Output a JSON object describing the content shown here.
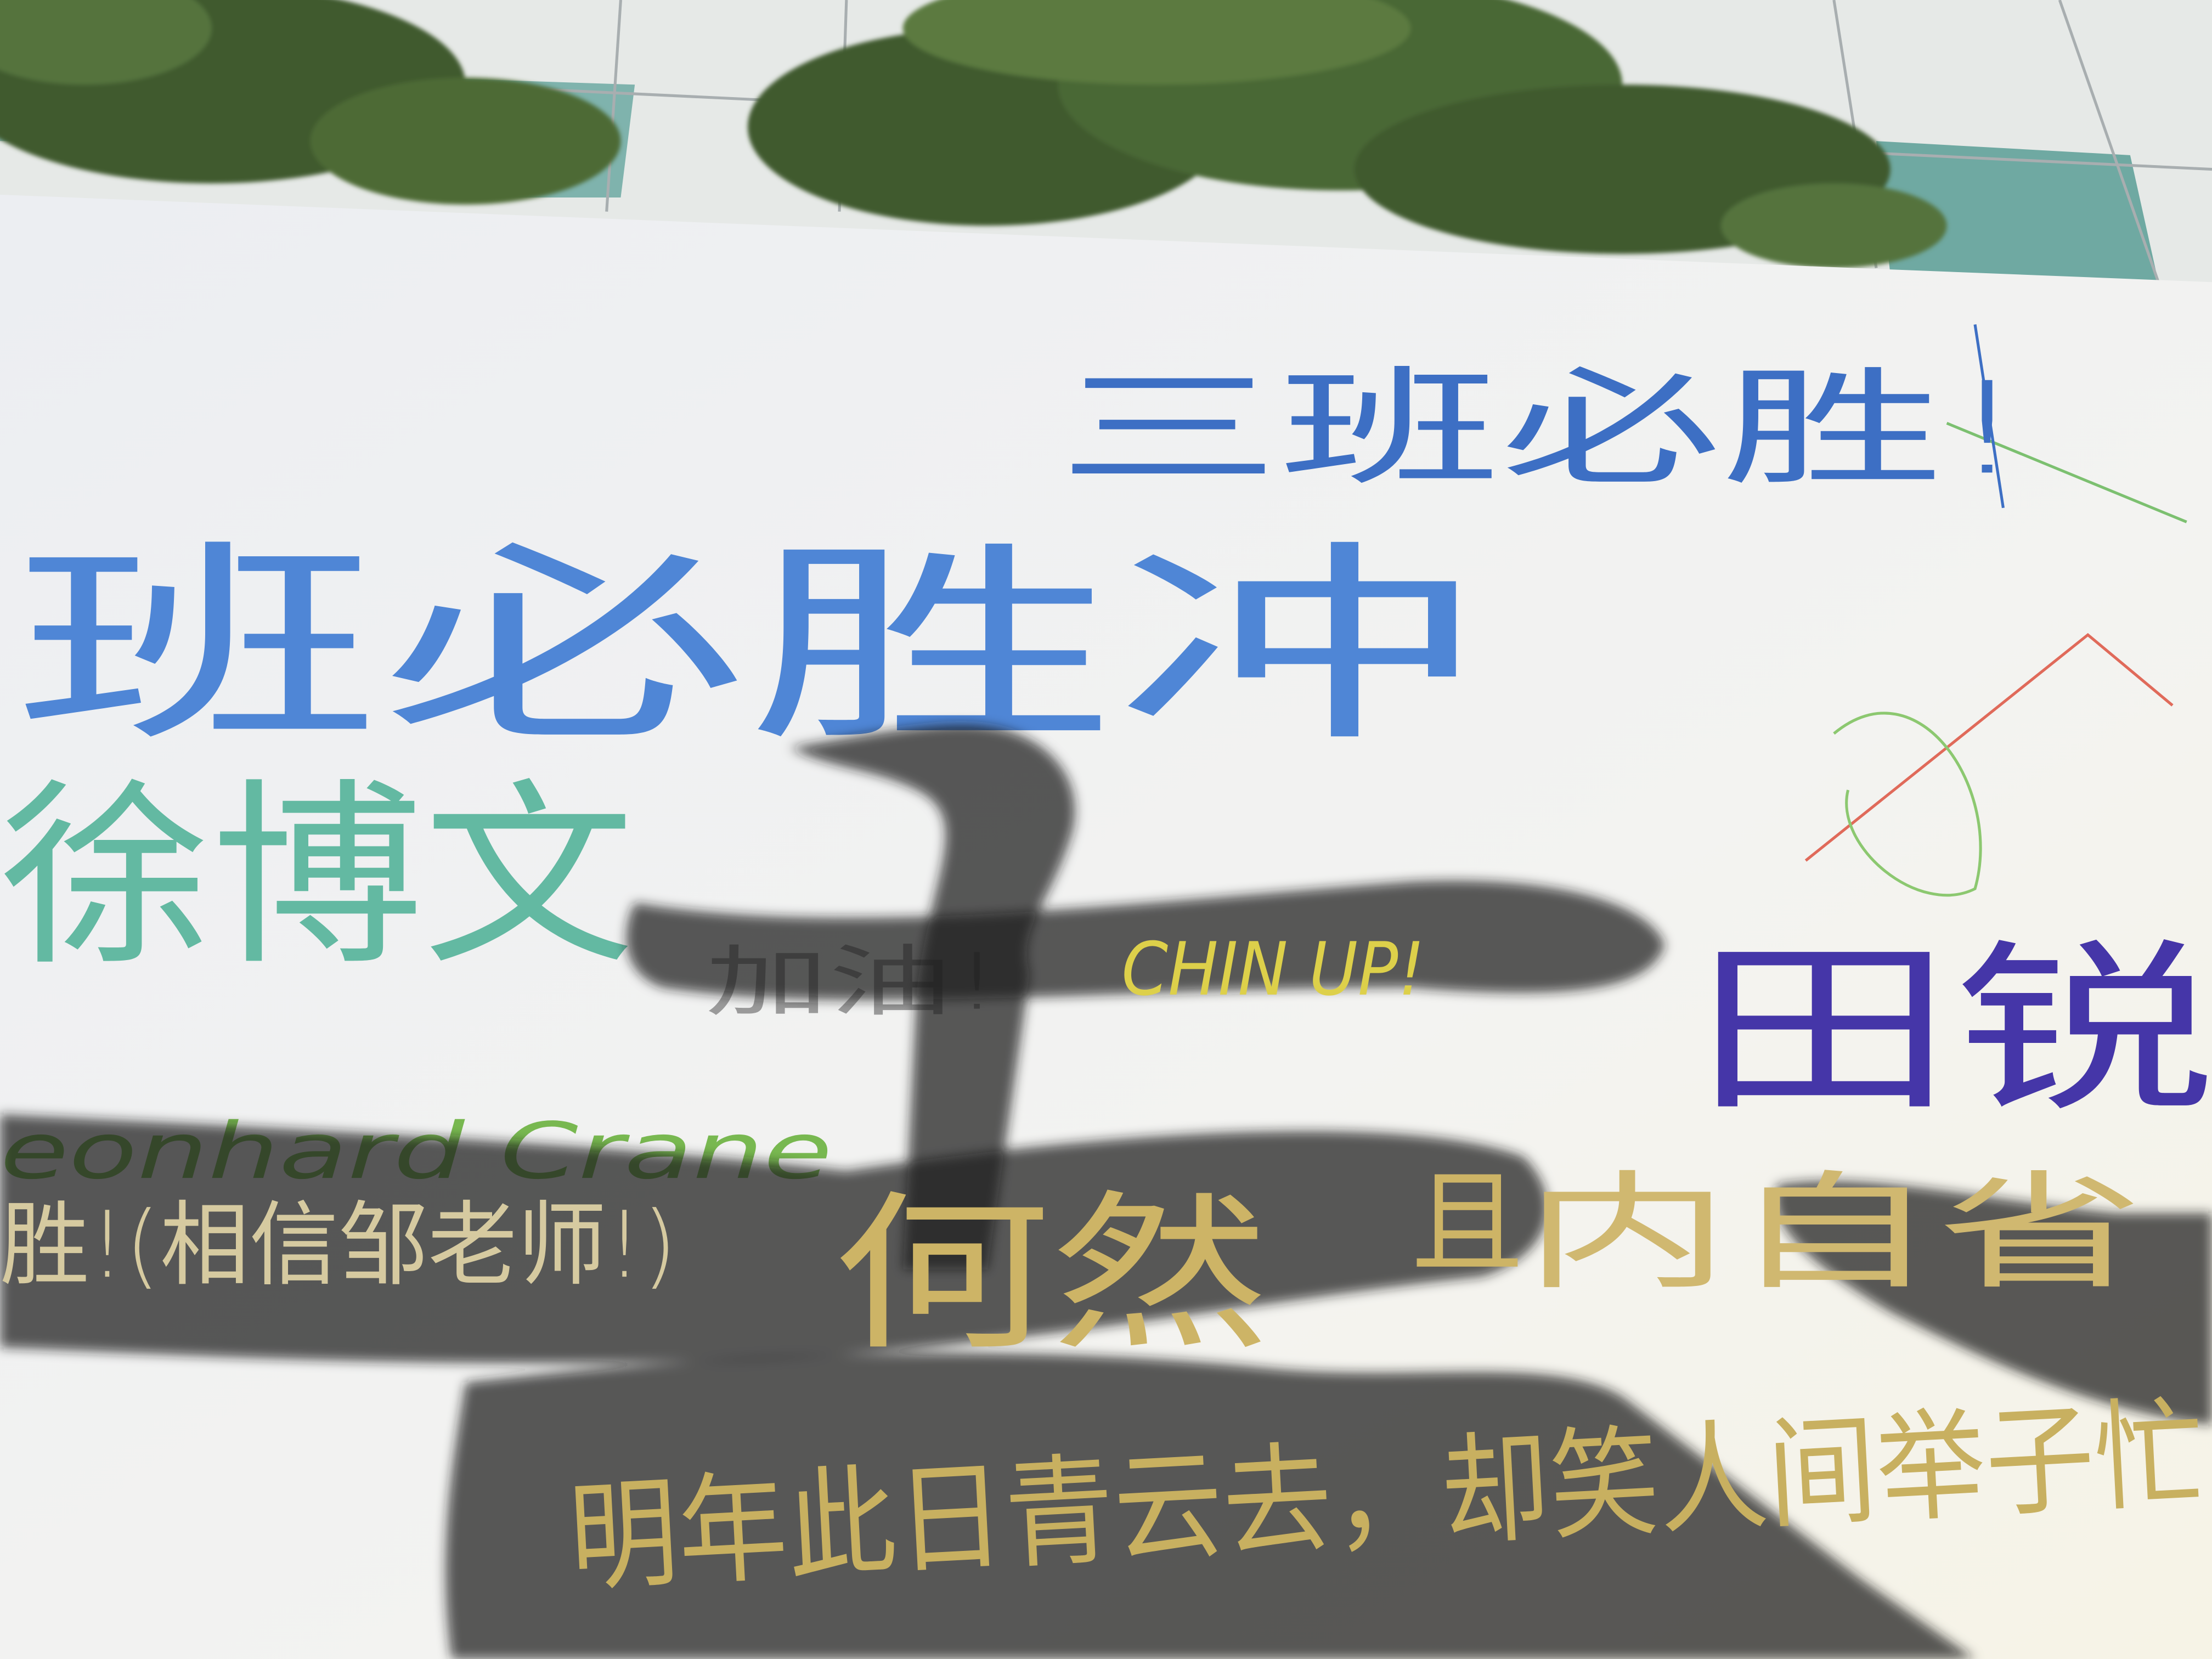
{
  "banner": {
    "writings": [
      {
        "text": "三班必胜!"
      },
      {
        "text": "班必胜冲"
      },
      {
        "text": "徐博文"
      },
      {
        "text": "加油!"
      },
      {
        "text": "CHIN UP!"
      },
      {
        "text": "田锐"
      },
      {
        "text": "eonhard Crane"
      },
      {
        "text": "胜!(相信邹老师!)"
      },
      {
        "text": "何然"
      },
      {
        "text": "且"
      },
      {
        "text": "内自省"
      },
      {
        "text": "明年此日青云去，却笑人间举子忙"
      }
    ]
  }
}
